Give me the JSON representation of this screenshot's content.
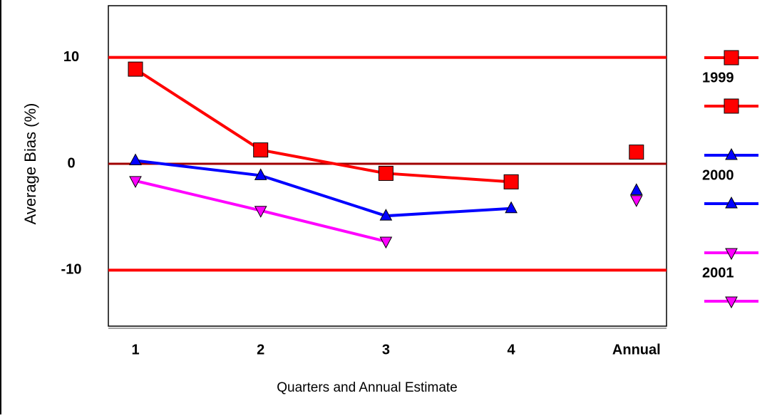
{
  "chart_data": {
    "type": "line",
    "y_axis_label": "Average Bias (%)",
    "x_axis_label": "Quarters and Annual Estimate",
    "categories": [
      "1",
      "2",
      "3",
      "4",
      "Annual"
    ],
    "series": [
      {
        "name": "1999",
        "color": "#ff0000",
        "marker": "square",
        "values": [
          8.9,
          1.3,
          -0.9,
          -1.7,
          1.1
        ]
      },
      {
        "name": "2000",
        "color": "#0000ff",
        "marker": "triangle-up",
        "values": [
          0.3,
          -1.1,
          -4.9,
          -4.2,
          -2.5
        ]
      },
      {
        "name": "2001",
        "color": "#ff00ff",
        "marker": "triangle-down",
        "values": [
          -1.6,
          -4.4,
          -7.3,
          null,
          -3.4
        ]
      }
    ],
    "ylim": [
      -15,
      15
    ],
    "yticks": [
      -10,
      0,
      10
    ],
    "grid": true,
    "grid_color": "#ff0000",
    "legend": "right"
  }
}
